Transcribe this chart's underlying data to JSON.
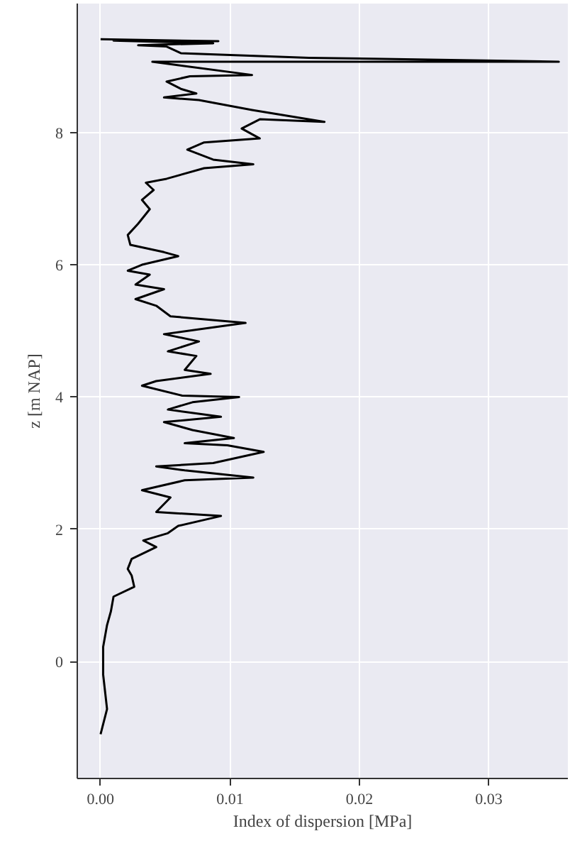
{
  "chart_data": {
    "type": "line",
    "xlabel": "Index of dispersion [MPa]",
    "ylabel": "z [m NAP]",
    "xlim": [
      -0.0018,
      0.0361
    ],
    "ylim": [
      -1.77,
      9.95
    ],
    "xticks": [
      {
        "value": 0,
        "label": "0.00"
      },
      {
        "value": 0.01,
        "label": "0.01"
      },
      {
        "value": 0.02,
        "label": "0.02"
      },
      {
        "value": 0.03,
        "label": "0.03"
      }
    ],
    "yticks": [
      0,
      2,
      4,
      6,
      8
    ],
    "grid": true,
    "line_style": "solid",
    "series": [
      {
        "color": "#000000",
        "x": [
          0.0,
          0.0005,
          0.0002,
          0.0002,
          0.0005,
          0.0008,
          0.001,
          0.0026,
          0.0024,
          0.0021,
          0.0024,
          0.0043,
          0.0033,
          0.0052,
          0.006,
          0.0093,
          0.0043,
          0.0054,
          0.0032,
          0.0065,
          0.0118,
          0.0065,
          0.0043,
          0.0087,
          0.0126,
          0.0098,
          0.0065,
          0.0103,
          0.0071,
          0.0049,
          0.0093,
          0.0052,
          0.0071,
          0.0107,
          0.0063,
          0.0032,
          0.0043,
          0.0085,
          0.0065,
          0.0074,
          0.0052,
          0.0076,
          0.0049,
          0.0112,
          0.0054,
          0.0043,
          0.0027,
          0.0049,
          0.0027,
          0.0038,
          0.0021,
          0.0032,
          0.006,
          0.0049,
          0.0023,
          0.0021,
          0.0029,
          0.0038,
          0.0032,
          0.0041,
          0.0035,
          0.0051,
          0.008,
          0.0118,
          0.0087,
          0.0067,
          0.008,
          0.0123,
          0.0109,
          0.0123,
          0.0173,
          0.0117,
          0.0076,
          0.0049,
          0.0074,
          0.0062,
          0.0051,
          0.0069,
          0.0117,
          0.004,
          0.0354,
          0.0161,
          0.0062,
          0.0051,
          0.0029,
          0.0087,
          0.001,
          0.0091,
          0.0
        ],
        "values": [
          -1.1,
          -0.72,
          -0.2,
          0.22,
          0.55,
          0.76,
          0.98,
          1.13,
          1.3,
          1.4,
          1.55,
          1.73,
          1.83,
          1.94,
          2.05,
          2.2,
          2.26,
          2.48,
          2.59,
          2.74,
          2.78,
          2.89,
          2.95,
          3.0,
          3.17,
          3.27,
          3.3,
          3.38,
          3.5,
          3.62,
          3.7,
          3.81,
          3.92,
          4.0,
          4.02,
          4.17,
          4.24,
          4.35,
          4.41,
          4.62,
          4.69,
          4.84,
          4.95,
          5.12,
          5.22,
          5.38,
          5.48,
          5.63,
          5.7,
          5.85,
          5.91,
          6.0,
          6.13,
          6.19,
          6.3,
          6.45,
          6.62,
          6.84,
          6.98,
          7.13,
          7.24,
          7.3,
          7.46,
          7.52,
          7.59,
          7.74,
          7.85,
          7.91,
          8.06,
          8.2,
          8.16,
          8.34,
          8.49,
          8.53,
          8.59,
          8.66,
          8.77,
          8.85,
          8.87,
          9.07,
          9.07,
          9.13,
          9.2,
          9.3,
          9.32,
          9.35,
          9.39,
          9.38,
          9.41
        ]
      }
    ]
  }
}
